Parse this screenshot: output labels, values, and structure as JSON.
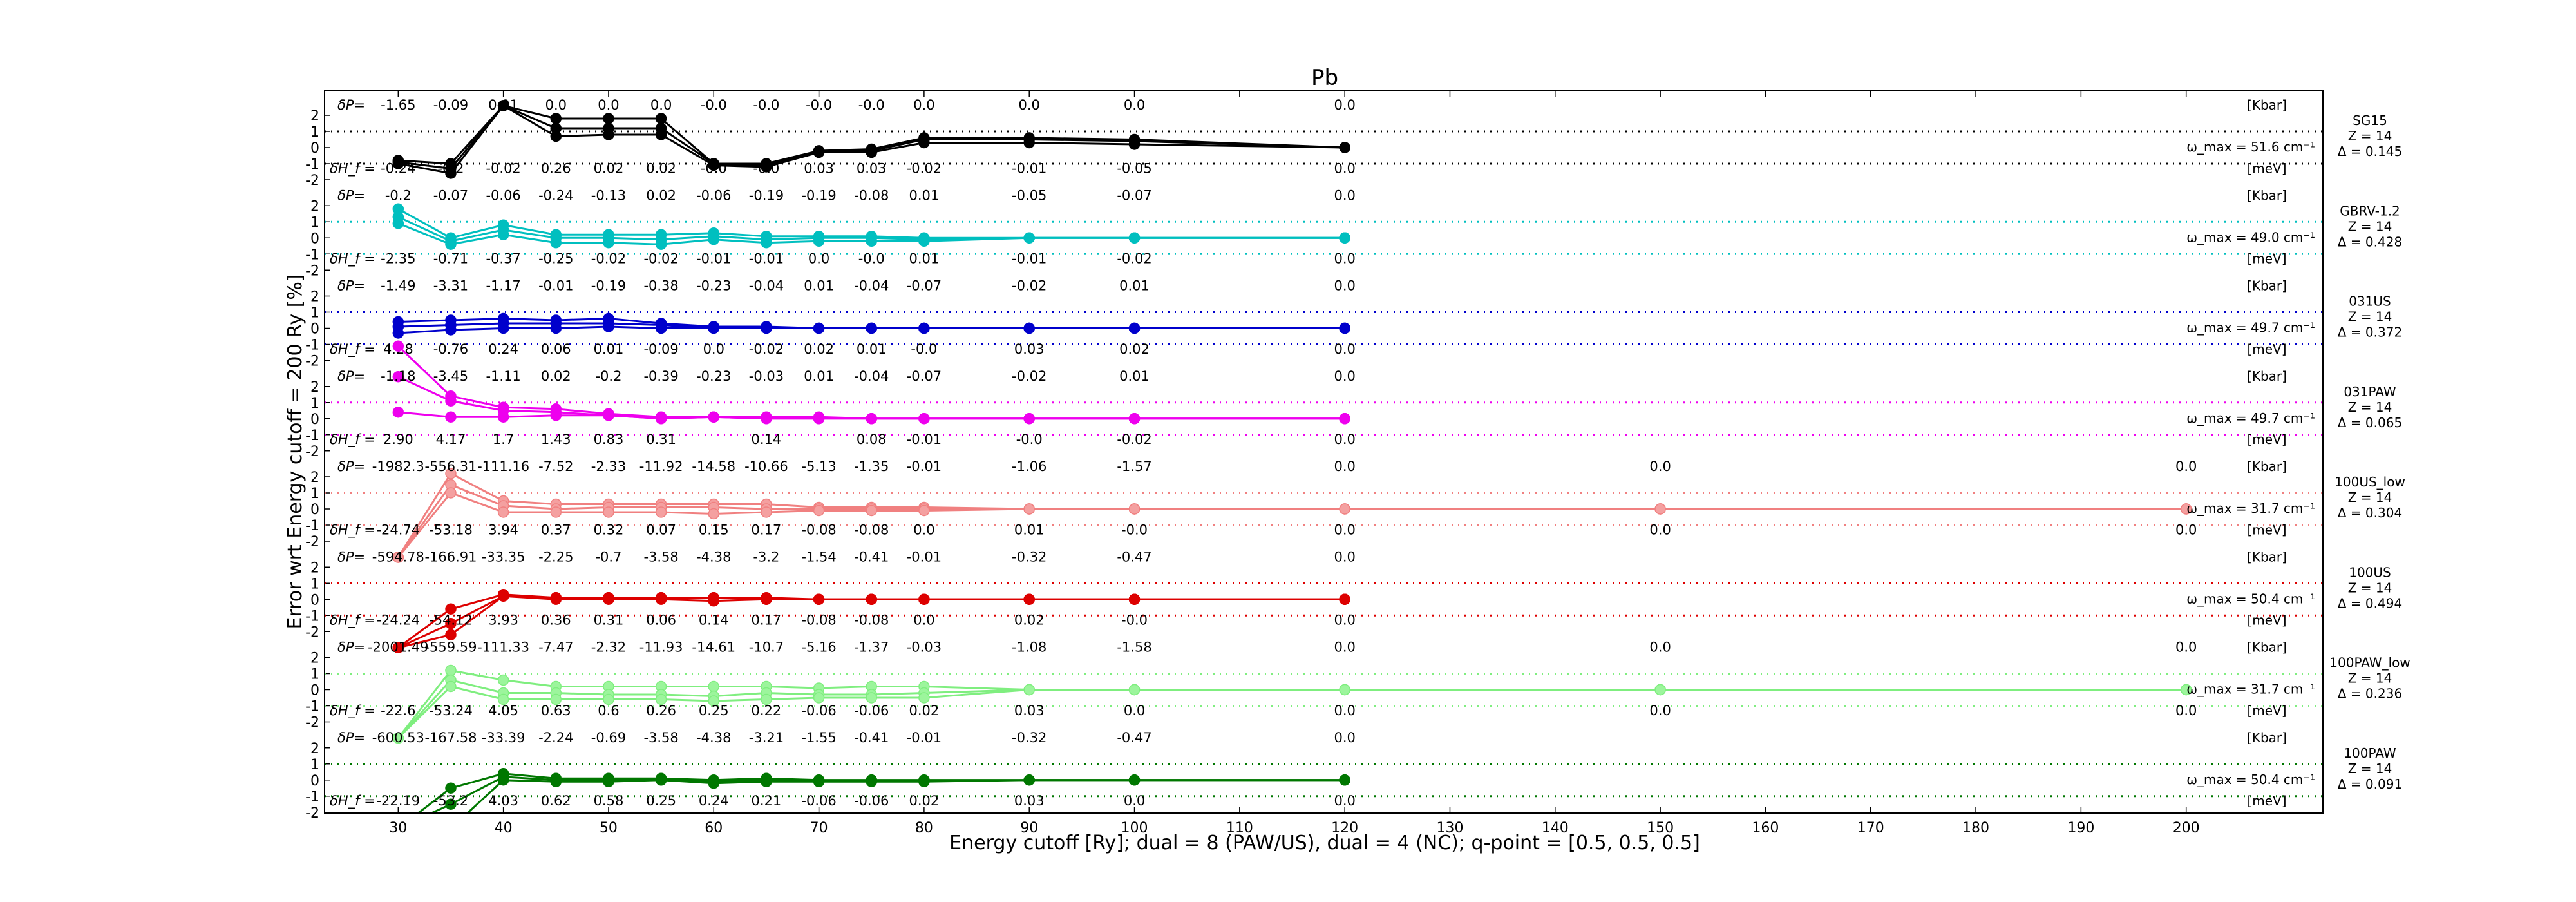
{
  "chart_data": {
    "type": "line",
    "title": "Pb",
    "xlabel": "Energy cutoff [Ry]; dual = 8 (PAW/US), dual = 4 (NC); q-point = [0.5, 0.5, 0.5]",
    "ylabel": "Error wrt Energy cutoff = 200 Ry [%]",
    "xlim": [
      23,
      213
    ],
    "x_ticks": [
      30,
      40,
      50,
      60,
      70,
      80,
      90,
      100,
      110,
      120,
      130,
      140,
      150,
      160,
      170,
      180,
      190,
      200
    ],
    "panel_y_ticks": [
      2,
      1,
      0,
      -1,
      -2
    ],
    "panel_ylim": [
      -2.5,
      2.5
    ],
    "grid": false,
    "labels": {
      "dP": "δP=",
      "dH": "δH_f =",
      "kbar": "[Kbar]",
      "mev": "[meV]"
    },
    "panels": [
      {
        "name": "SG15",
        "color": "#000000",
        "marker_face": "#000000",
        "info": [
          "SG15",
          "Z = 14",
          "Δ = 0.145"
        ],
        "omega": "ω_max = 51.6 cm⁻¹",
        "x": [
          30,
          35,
          40,
          45,
          50,
          55,
          60,
          65,
          70,
          75,
          80,
          90,
          100,
          120
        ],
        "dP": [
          "-1.65",
          "-0.09",
          "0.01",
          "0.0",
          "0.0",
          "0.0",
          "-0.0",
          "-0.0",
          "-0.0",
          "-0.0",
          "0.0",
          "0.0",
          "0.0",
          "0.0"
        ],
        "dH": [
          "-0.24",
          "-0.2",
          "-0.02",
          "0.26",
          "0.02",
          "0.02",
          "-0.0",
          "-0.0",
          "0.03",
          "0.03",
          "-0.02",
          "-0.01",
          "-0.05",
          "0.0"
        ],
        "series": [
          [
            -0.8,
            -1.0,
            2.6,
            1.8,
            1.8,
            1.8,
            -1.0,
            -1.0,
            -0.2,
            -0.1,
            0.6,
            0.6,
            0.5,
            0.0
          ],
          [
            -0.9,
            -1.3,
            2.6,
            1.2,
            1.2,
            1.2,
            -1.0,
            -1.1,
            -0.2,
            -0.2,
            0.5,
            0.5,
            0.4,
            0.0
          ],
          [
            -1.0,
            -1.6,
            2.6,
            0.7,
            0.8,
            0.8,
            -1.1,
            -1.2,
            -0.3,
            -0.3,
            0.3,
            0.3,
            0.2,
            0.0
          ]
        ]
      },
      {
        "name": "GBRV-1.2",
        "color": "#00bfbf",
        "marker_face": "#00bfbf",
        "info": [
          "GBRV-1.2",
          "Z = 14",
          "Δ = 0.428"
        ],
        "omega": "ω_max = 49.0 cm⁻¹",
        "x": [
          30,
          35,
          40,
          45,
          50,
          55,
          60,
          65,
          70,
          75,
          80,
          90,
          100,
          120
        ],
        "dP": [
          "-0.2",
          "-0.07",
          "-0.06",
          "-0.24",
          "-0.13",
          "0.02",
          "-0.06",
          "-0.19",
          "-0.19",
          "-0.08",
          "0.01",
          "-0.05",
          "-0.07",
          "0.0"
        ],
        "dH": [
          "-2.35",
          "-0.71",
          "-0.37",
          "-0.25",
          "-0.02",
          "-0.02",
          "-0.01",
          "-0.01",
          "0.0",
          "-0.0",
          "0.01",
          "-0.01",
          "-0.02",
          "0.0"
        ],
        "series": [
          [
            1.8,
            0.0,
            0.8,
            0.2,
            0.2,
            0.2,
            0.3,
            0.1,
            0.1,
            0.1,
            0.0,
            0.0,
            0.0,
            0.0
          ],
          [
            1.3,
            -0.2,
            0.5,
            0.0,
            0.0,
            -0.1,
            0.1,
            -0.1,
            0.0,
            0.0,
            -0.1,
            0.0,
            0.0,
            0.0
          ],
          [
            0.9,
            -0.4,
            0.2,
            -0.3,
            -0.3,
            -0.4,
            -0.1,
            -0.3,
            -0.2,
            -0.2,
            -0.2,
            0.0,
            0.0,
            0.0
          ]
        ]
      },
      {
        "name": "031US",
        "color": "#0000cc",
        "marker_face": "#0000cc",
        "info": [
          "031US",
          "Z = 14",
          "Δ = 0.372"
        ],
        "omega": "ω_max = 49.7 cm⁻¹",
        "x": [
          30,
          35,
          40,
          45,
          50,
          55,
          60,
          65,
          70,
          75,
          80,
          90,
          100,
          120
        ],
        "dP": [
          "-1.49",
          "-3.31",
          "-1.17",
          "-0.01",
          "-0.19",
          "-0.38",
          "-0.23",
          "-0.04",
          "0.01",
          "-0.04",
          "-0.07",
          "-0.02",
          "0.01",
          "0.0"
        ],
        "dH": [
          "4.28",
          "-0.76",
          "0.24",
          "0.06",
          "0.01",
          "-0.09",
          "0.0",
          "-0.02",
          "0.02",
          "0.01",
          "-0.0",
          "0.03",
          "0.02",
          "0.0"
        ],
        "series": [
          [
            0.4,
            0.5,
            0.6,
            0.5,
            0.6,
            0.3,
            0.1,
            0.1,
            0.0,
            0.0,
            0.0,
            0.0,
            0.0,
            0.0
          ],
          [
            0.1,
            0.2,
            0.3,
            0.3,
            0.3,
            0.2,
            0.0,
            0.0,
            0.0,
            0.0,
            0.0,
            0.0,
            0.0,
            0.0
          ],
          [
            -0.3,
            -0.1,
            0.0,
            0.0,
            0.1,
            0.0,
            0.0,
            0.0,
            0.0,
            0.0,
            0.0,
            0.0,
            0.0,
            0.0
          ]
        ]
      },
      {
        "name": "031PAW",
        "color": "#ee00ee",
        "marker_face": "#ee00ee",
        "info": [
          "031PAW",
          "Z = 14",
          "Δ = 0.065"
        ],
        "omega": "ω_max = 49.7 cm⁻¹",
        "x": [
          30,
          35,
          40,
          45,
          50,
          55,
          60,
          65,
          70,
          75,
          80,
          90,
          100,
          120
        ],
        "dP": [
          "-1.18",
          "-3.45",
          "-1.11",
          "0.02",
          "-0.2",
          "-0.39",
          "-0.23",
          "-0.03",
          "0.01",
          "-0.04",
          "-0.07",
          "-0.02",
          "0.01",
          "0.0"
        ],
        "dH": [
          "2.90",
          "4.17",
          "1.7",
          "1.43",
          "0.83",
          "0.31",
          "",
          "0.14",
          "",
          "0.08",
          "-0.01",
          "-0.0",
          "-0.02",
          "0.0"
        ],
        "series": [
          [
            4.5,
            1.4,
            0.7,
            0.6,
            0.3,
            0.1,
            0.1,
            0.1,
            0.1,
            0.0,
            0.0,
            0.0,
            0.0,
            0.0
          ],
          [
            2.6,
            1.1,
            0.5,
            0.4,
            0.2,
            0.0,
            0.1,
            0.0,
            0.0,
            0.0,
            0.0,
            0.0,
            0.0,
            0.0
          ],
          [
            0.4,
            0.1,
            0.1,
            0.2,
            0.2,
            0.0,
            0.1,
            0.0,
            0.0,
            0.0,
            0.0,
            0.0,
            0.0,
            0.0
          ]
        ]
      },
      {
        "name": "100US_low",
        "color": "#f08080",
        "marker_face": "#f4a0a0",
        "info": [
          "100US_low",
          "Z = 14",
          "Δ = 0.304"
        ],
        "omega": "ω_max = 31.7 cm⁻¹",
        "x": [
          30,
          35,
          40,
          45,
          50,
          55,
          60,
          65,
          70,
          75,
          80,
          90,
          100,
          120,
          150,
          200
        ],
        "dP": [
          "-1982.3",
          "-556.31",
          "-111.16",
          "-7.52",
          "-2.33",
          "-11.92",
          "-14.58",
          "-10.66",
          "-5.13",
          "-1.35",
          "-0.01",
          "-1.06",
          "-1.57",
          "0.0",
          "0.0",
          "0.0"
        ],
        "dH": [
          "-24.74",
          "-53.18",
          "3.94",
          "0.37",
          "0.32",
          "0.07",
          "0.15",
          "0.17",
          "-0.08",
          "-0.08",
          "0.0",
          "0.01",
          "-0.0",
          "0.0",
          "0.0",
          "0.0"
        ],
        "series": [
          [
            -3.0,
            2.2,
            0.5,
            0.3,
            0.3,
            0.3,
            0.3,
            0.3,
            0.1,
            0.1,
            0.1,
            0.0,
            0.0,
            0.0,
            0.0,
            0.0
          ],
          [
            -3.0,
            1.5,
            0.2,
            0.0,
            0.1,
            0.1,
            0.1,
            0.0,
            0.0,
            0.0,
            0.0,
            0.0,
            0.0,
            0.0,
            0.0,
            0.0
          ],
          [
            -3.0,
            1.0,
            -0.2,
            -0.2,
            -0.2,
            -0.2,
            -0.3,
            -0.2,
            -0.1,
            -0.1,
            -0.1,
            0.0,
            0.0,
            0.0,
            0.0,
            0.0
          ]
        ]
      },
      {
        "name": "100US",
        "color": "#dd0000",
        "marker_face": "#dd0000",
        "info": [
          "100US",
          "Z = 14",
          "Δ = 0.494"
        ],
        "omega": "ω_max = 50.4 cm⁻¹",
        "x": [
          30,
          35,
          40,
          45,
          50,
          55,
          60,
          65,
          70,
          75,
          80,
          90,
          100,
          120
        ],
        "dP": [
          "-594.78",
          "-166.91",
          "-33.35",
          "-2.25",
          "-0.7",
          "-3.58",
          "-4.38",
          "-3.2",
          "-1.54",
          "-0.41",
          "-0.01",
          "-0.32",
          "-0.47",
          "0.0"
        ],
        "dH": [
          "-24.24",
          "-54.12",
          "3.93",
          "0.36",
          "0.31",
          "0.06",
          "0.14",
          "0.17",
          "-0.08",
          "-0.08",
          "0.0",
          "0.02",
          "-0.0",
          "0.0"
        ],
        "series": [
          [
            -3.0,
            -0.6,
            0.3,
            0.1,
            0.1,
            0.1,
            0.1,
            0.1,
            0.0,
            0.0,
            0.0,
            0.0,
            0.0,
            0.0
          ],
          [
            -3.0,
            -1.5,
            0.2,
            0.0,
            0.0,
            0.0,
            -0.1,
            0.0,
            0.0,
            0.0,
            0.0,
            0.0,
            0.0,
            0.0
          ],
          [
            -3.0,
            -2.2,
            0.2,
            0.1,
            0.1,
            0.1,
            0.1,
            0.0,
            0.0,
            0.0,
            0.0,
            0.0,
            0.0,
            0.0
          ]
        ]
      },
      {
        "name": "100PAW_low",
        "color": "#7fee7f",
        "marker_face": "#9cf59c",
        "info": [
          "100PAW_low",
          "Z = 14",
          "Δ = 0.236"
        ],
        "omega": "ω_max = 31.7 cm⁻¹",
        "x": [
          30,
          35,
          40,
          45,
          50,
          55,
          60,
          65,
          70,
          75,
          80,
          90,
          100,
          120,
          150,
          200
        ],
        "dP": [
          "-2001.49",
          "-559.59",
          "-111.33",
          "-7.47",
          "-2.32",
          "-11.93",
          "-14.61",
          "-10.7",
          "-5.16",
          "-1.37",
          "-0.03",
          "-1.08",
          "-1.58",
          "0.0",
          "0.0",
          "0.0"
        ],
        "dH": [
          "-22.6",
          "-53.24",
          "4.05",
          "0.63",
          "0.6",
          "0.26",
          "0.25",
          "0.22",
          "-0.06",
          "-0.06",
          "0.02",
          "0.03",
          "0.0",
          "0.0",
          "0.0",
          "0.0"
        ],
        "series": [
          [
            -3.0,
            1.2,
            0.6,
            0.2,
            0.2,
            0.2,
            0.2,
            0.2,
            0.1,
            0.2,
            0.2,
            0.0,
            0.0,
            0.0,
            0.0,
            0.0
          ],
          [
            -3.0,
            0.6,
            -0.2,
            -0.2,
            -0.3,
            -0.3,
            -0.4,
            -0.2,
            -0.3,
            -0.3,
            -0.2,
            0.0,
            0.0,
            0.0,
            0.0,
            0.0
          ],
          [
            -3.0,
            0.2,
            -0.6,
            -0.6,
            -0.6,
            -0.6,
            -0.7,
            -0.6,
            -0.5,
            -0.5,
            -0.5,
            0.0,
            0.0,
            0.0,
            0.0,
            0.0
          ]
        ]
      },
      {
        "name": "100PAW",
        "color": "#007700",
        "marker_face": "#007700",
        "info": [
          "100PAW",
          "Z = 14",
          "Δ = 0.091"
        ],
        "omega": "ω_max = 50.4 cm⁻¹",
        "x": [
          30,
          35,
          40,
          45,
          50,
          55,
          60,
          65,
          70,
          75,
          80,
          90,
          100,
          120
        ],
        "dP": [
          "-600.53",
          "-167.58",
          "-33.39",
          "-2.24",
          "-0.69",
          "-3.58",
          "-4.38",
          "-3.21",
          "-1.55",
          "-0.41",
          "-0.01",
          "-0.32",
          "-0.47",
          "0.0"
        ],
        "dH": [
          "-22.19",
          "-53.2",
          "4.03",
          "0.62",
          "0.58",
          "0.25",
          "0.24",
          "0.21",
          "-0.06",
          "-0.06",
          "0.02",
          "0.03",
          "0.0",
          "0.0"
        ],
        "series": [
          [
            -3.0,
            -0.5,
            0.4,
            0.1,
            0.1,
            0.1,
            0.0,
            0.1,
            0.0,
            0.0,
            0.0,
            0.0,
            0.0,
            0.0
          ],
          [
            -3.0,
            -1.5,
            0.2,
            0.0,
            0.0,
            0.0,
            -0.1,
            0.0,
            0.0,
            0.0,
            0.0,
            0.0,
            0.0,
            0.0
          ],
          [
            -3.0,
            -3.0,
            0.0,
            -0.1,
            -0.1,
            0.0,
            -0.2,
            -0.1,
            -0.1,
            -0.1,
            -0.1,
            0.0,
            0.0,
            0.0
          ]
        ]
      }
    ]
  }
}
